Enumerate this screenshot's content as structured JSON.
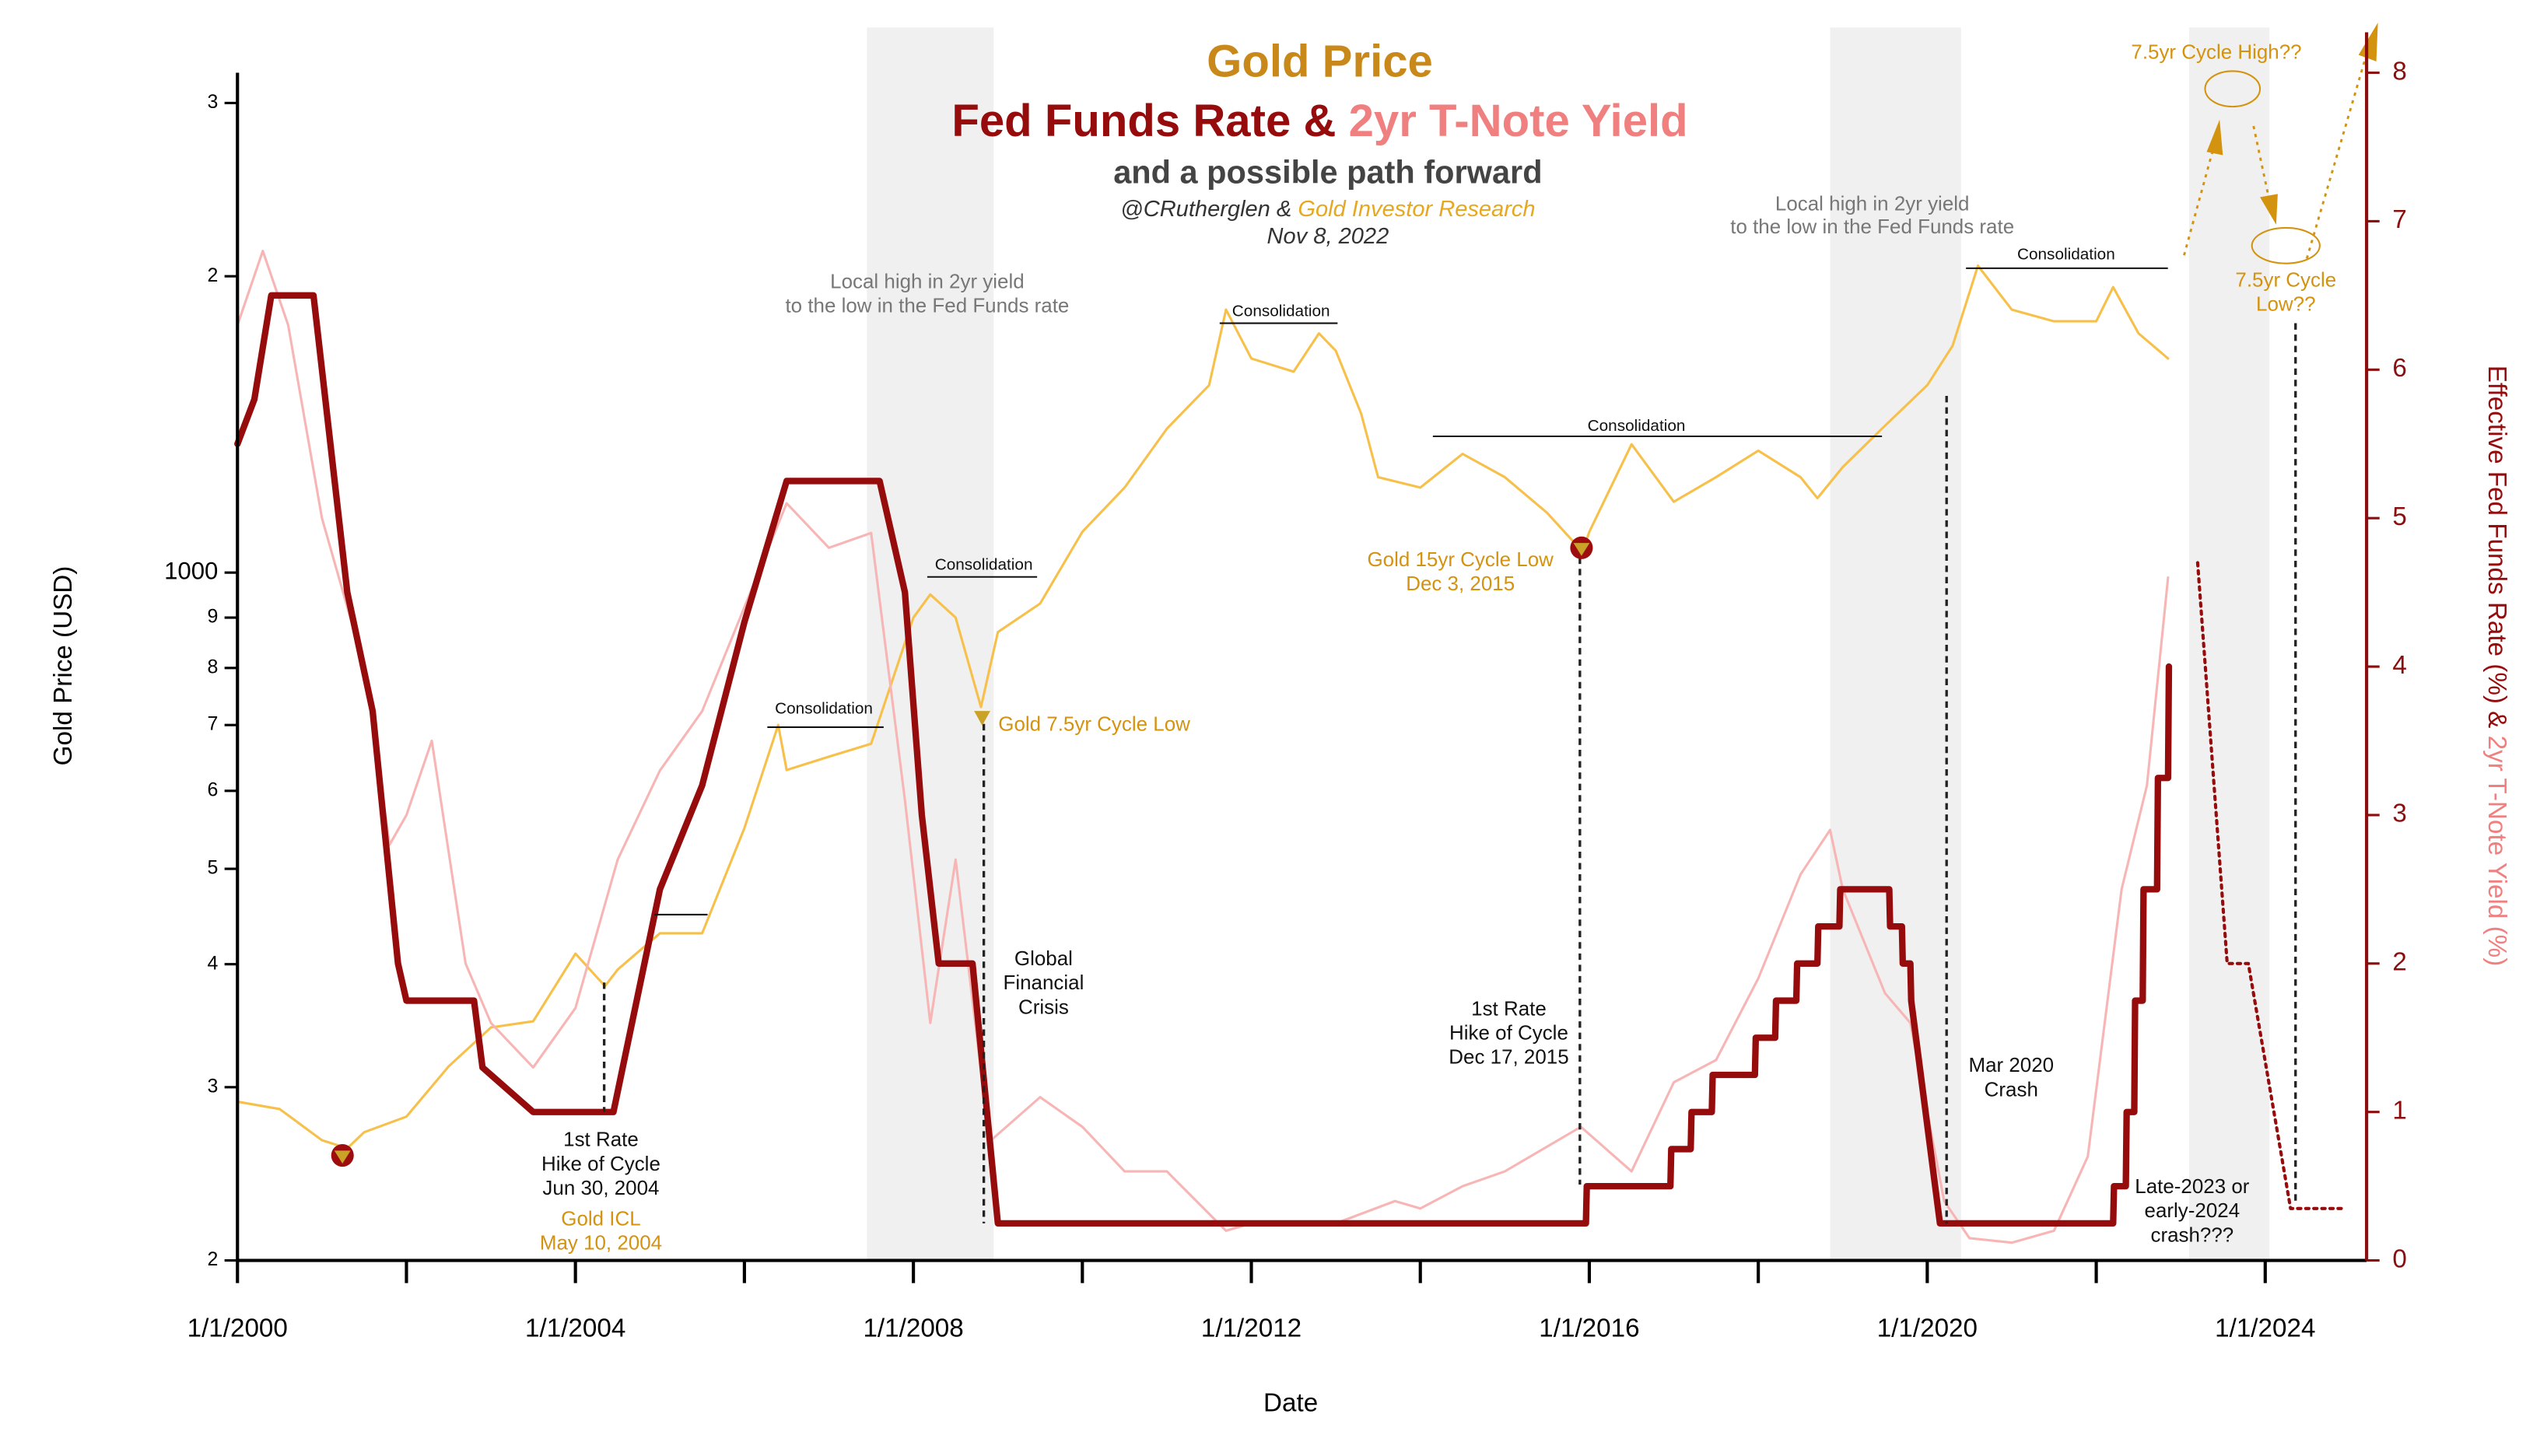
{
  "chart_data": {
    "type": "line",
    "title": "Gold Price",
    "title_line2a": "Fed Funds Rate & ",
    "title_line2b": "2yr T-Note Yield",
    "subtitle": "and a possible path forward",
    "credit_a": "@CRutherglen & ",
    "credit_b": "Gold Investor Research",
    "date": "Nov 8, 2022",
    "xlabel": "Date",
    "ylabel": "Gold Price (USD)",
    "y2label_a": "Effective Fed Funds Rate (%) & ",
    "y2label_b": "2yr T-Note Yield (%)",
    "xlim": [
      2000,
      2025.2
    ],
    "xticks": [
      {
        "value": 2000,
        "label": "1/1/2000"
      },
      {
        "value": 2004,
        "label": "1/1/2004"
      },
      {
        "value": 2008,
        "label": "1/1/2008"
      },
      {
        "value": 2012,
        "label": "1/1/2012"
      },
      {
        "value": 2016,
        "label": "1/1/2016"
      },
      {
        "value": 2020,
        "label": "1/1/2020"
      },
      {
        "value": 2024,
        "label": "1/1/2024"
      }
    ],
    "xminorticks": [
      2002,
      2006,
      2010,
      2014,
      2018,
      2022
    ],
    "ylim": [
      200,
      3220
    ],
    "ylog": true,
    "yticks": [
      {
        "value": 200,
        "label": "2"
      },
      {
        "value": 300,
        "label": "3"
      },
      {
        "value": 400,
        "label": "4"
      },
      {
        "value": 500,
        "label": "5"
      },
      {
        "value": 600,
        "label": "6"
      },
      {
        "value": 700,
        "label": "7"
      },
      {
        "value": 800,
        "label": "8"
      },
      {
        "value": 900,
        "label": "9"
      },
      1000,
      {
        "value": 2000,
        "label": "2"
      },
      {
        "value": 3000,
        "label": "3"
      }
    ],
    "y2lim": [
      0,
      8
    ],
    "y2ticks": [
      0,
      1,
      2,
      3,
      4,
      5,
      6,
      7,
      8
    ],
    "grid": true,
    "shaded_x": [
      [
        2007.45,
        2008.95
      ],
      [
        2018.85,
        2020.4
      ],
      [
        2023.1,
        2024.05
      ]
    ],
    "series": [
      {
        "color": "#f7c04a",
        "width": 1.5,
        "x": [
          2000,
          2000.5,
          2001,
          2001.3,
          2001.5,
          2002,
          2002.5,
          2003,
          2003.5,
          2004,
          2004.35,
          2004.5,
          2005,
          2005.5,
          2006,
          2006.4,
          2006.5,
          2007,
          2007.5,
          2008,
          2008.2,
          2008.5,
          2008.8,
          2009,
          2009.5,
          2010,
          2010.5,
          2011,
          2011.5,
          2011.7,
          2012,
          2012.5,
          2012.8,
          2013,
          2013.3,
          2013.5,
          2014,
          2014.5,
          2015,
          2015.5,
          2015.92,
          2016,
          2016.5,
          2017,
          2017.5,
          2018,
          2018.5,
          2018.7,
          2019,
          2019.5,
          2020,
          2020.3,
          2020.6,
          2021,
          2021.5,
          2022,
          2022.2,
          2022.5,
          2022.85
        ],
        "values": [
          290,
          285,
          265,
          260,
          270,
          280,
          315,
          345,
          350,
          410,
          380,
          395,
          430,
          430,
          550,
          700,
          630,
          650,
          670,
          900,
          950,
          900,
          730,
          870,
          930,
          1100,
          1220,
          1400,
          1550,
          1850,
          1650,
          1600,
          1750,
          1680,
          1450,
          1250,
          1220,
          1320,
          1250,
          1150,
          1050,
          1100,
          1350,
          1180,
          1250,
          1330,
          1250,
          1190,
          1280,
          1410,
          1550,
          1700,
          2050,
          1850,
          1800,
          1800,
          1950,
          1750,
          1650
        ]
      },
      {
        "color": "#f7b5b5",
        "width": 1.5,
        "axis": "y2",
        "x": [
          2000,
          2000.3,
          2000.6,
          2001,
          2001.5,
          2001.8,
          2002,
          2002.3,
          2002.7,
          2003,
          2003.5,
          2004,
          2004.5,
          2005,
          2005.5,
          2006,
          2006.5,
          2007,
          2007.5,
          2007.9,
          2008.2,
          2008.5,
          2008.9,
          2009.5,
          2010,
          2010.5,
          2011,
          2011.7,
          2012,
          2013,
          2013.7,
          2014,
          2014.5,
          2015,
          2015.9,
          2016.5,
          2017,
          2017.5,
          2018,
          2018.5,
          2018.85,
          2019,
          2019.5,
          2019.8,
          2020.2,
          2020.5,
          2021,
          2021.5,
          2021.9,
          2022.3,
          2022.6,
          2022.85
        ],
        "values": [
          6.3,
          6.8,
          6.3,
          5.0,
          4.0,
          2.8,
          3.0,
          3.5,
          2.0,
          1.6,
          1.3,
          1.7,
          2.7,
          3.3,
          3.7,
          4.4,
          5.1,
          4.8,
          4.9,
          3.1,
          1.6,
          2.7,
          0.8,
          1.1,
          0.9,
          0.6,
          0.6,
          0.2,
          0.25,
          0.25,
          0.4,
          0.35,
          0.5,
          0.6,
          0.9,
          0.6,
          1.2,
          1.35,
          1.9,
          2.6,
          2.9,
          2.5,
          1.8,
          1.6,
          0.4,
          0.15,
          0.12,
          0.2,
          0.7,
          2.5,
          3.2,
          4.6
        ]
      },
      {
        "color": "#960c0c",
        "width": 4,
        "axis": "y2",
        "x": [
          2000,
          2000.2,
          2000.4,
          2000.9,
          2001.1,
          2001.3,
          2001.6,
          2001.9,
          2002,
          2002.8,
          2002.9,
          2003.5,
          2004.45,
          2005,
          2005.5,
          2006,
          2006.5,
          2007.6,
          2007.9,
          2008.1,
          2008.3,
          2008.7,
          2009,
          2015.96,
          2015.97,
          2016.96,
          2016.97,
          2017.2,
          2017.21,
          2017.45,
          2017.46,
          2017.96,
          2017.97,
          2018.2,
          2018.21,
          2018.45,
          2018.46,
          2018.7,
          2018.71,
          2018.96,
          2018.97,
          2019.55,
          2019.56,
          2019.7,
          2019.71,
          2019.8,
          2019.81,
          2020.15,
          2022.2,
          2022.21,
          2022.35,
          2022.36,
          2022.45,
          2022.46,
          2022.55,
          2022.56,
          2022.72,
          2022.73,
          2022.85,
          2022.86
        ],
        "values": [
          5.5,
          5.8,
          6.5,
          6.5,
          5.5,
          4.5,
          3.7,
          2.0,
          1.75,
          1.75,
          1.3,
          1.0,
          1.0,
          2.5,
          3.2,
          4.3,
          5.25,
          5.25,
          4.5,
          3.0,
          2.0,
          2.0,
          0.25,
          0.25,
          0.5,
          0.5,
          0.75,
          0.75,
          1.0,
          1.0,
          1.25,
          1.25,
          1.5,
          1.5,
          1.75,
          1.75,
          2.0,
          2.0,
          2.25,
          2.25,
          2.5,
          2.5,
          2.25,
          2.25,
          2.0,
          2.0,
          1.75,
          0.25,
          0.25,
          0.5,
          0.5,
          1.0,
          1.0,
          1.75,
          1.75,
          2.5,
          2.5,
          3.25,
          3.25,
          4.0
        ]
      },
      {
        "color": "#960c0c",
        "width": 2,
        "axis": "y2",
        "dash": "2 3",
        "x": [
          2023.2,
          2023.55,
          2023.8,
          2024.3,
          2024.9
        ],
        "values": [
          4.7,
          2.0,
          2.0,
          0.35,
          0.35
        ]
      }
    ],
    "annotations": [
      "Local high in 2yr yield",
      "to the low in the Fed Funds rate",
      "Local high in 2yr yield",
      "to the low in the Fed Funds rate",
      "Consolidation",
      "Consolidation",
      "Consolidation",
      "Consolidation",
      "Consolidation",
      "Gold 7.5yr Cycle Low",
      "Gold 15yr Cycle Low",
      "Dec 3, 2015",
      "1st Rate",
      "Hike of Cycle",
      "Jun 30, 2004",
      "Gold ICL",
      "May 10, 2004",
      "Global",
      "Financial",
      "Crisis",
      "1st Rate",
      "Hike of Cycle",
      "Dec 17, 2015",
      "Mar 2020",
      "Crash",
      "Late-2023 or",
      "early-2024",
      "crash???",
      "7.5yr Cycle High??",
      "7.5yr Cycle",
      "Low??"
    ]
  }
}
